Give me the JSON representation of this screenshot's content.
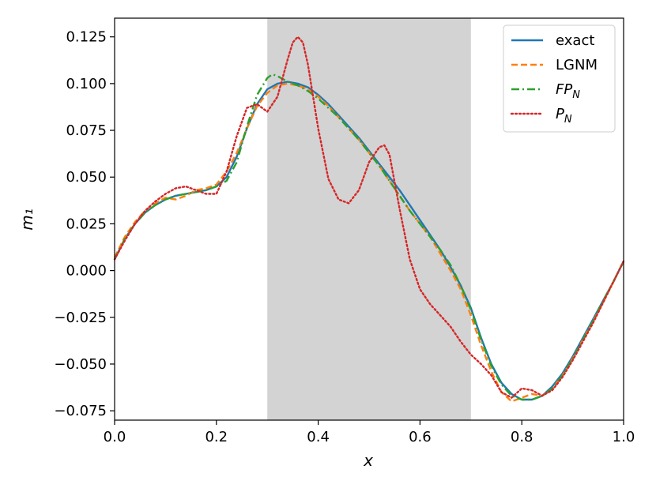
{
  "chart_data": {
    "type": "line",
    "title": "",
    "xlabel": "x",
    "ylabel": "m₁",
    "xlim": [
      0.0,
      1.0
    ],
    "ylim": [
      -0.08,
      0.135
    ],
    "xticks": [
      "0.0",
      "0.2",
      "0.4",
      "0.6",
      "0.8",
      "1.0"
    ],
    "yticks": [
      "−0.075",
      "−0.050",
      "−0.025",
      "0.000",
      "0.025",
      "0.050",
      "0.075",
      "0.100",
      "0.125"
    ],
    "shaded_region": {
      "x": [
        0.3,
        0.7
      ],
      "color": "#d3d3d3"
    },
    "grid": false,
    "legend_position": "top-right",
    "series": [
      {
        "name": "exact",
        "style": "solid",
        "color": "#1f77b4",
        "x": [
          0.0,
          0.02,
          0.04,
          0.06,
          0.08,
          0.1,
          0.12,
          0.14,
          0.16,
          0.18,
          0.2,
          0.22,
          0.24,
          0.26,
          0.28,
          0.3,
          0.32,
          0.34,
          0.36,
          0.38,
          0.4,
          0.42,
          0.44,
          0.46,
          0.48,
          0.5,
          0.52,
          0.54,
          0.56,
          0.58,
          0.6,
          0.62,
          0.64,
          0.66,
          0.68,
          0.7,
          0.72,
          0.74,
          0.76,
          0.78,
          0.8,
          0.82,
          0.84,
          0.86,
          0.88,
          0.9,
          0.92,
          0.94,
          0.96,
          0.98,
          1.0
        ],
        "y": [
          0.006,
          0.017,
          0.025,
          0.031,
          0.035,
          0.038,
          0.04,
          0.041,
          0.042,
          0.043,
          0.045,
          0.05,
          0.061,
          0.076,
          0.089,
          0.097,
          0.1,
          0.101,
          0.1,
          0.098,
          0.094,
          0.089,
          0.083,
          0.077,
          0.071,
          0.064,
          0.057,
          0.05,
          0.043,
          0.035,
          0.027,
          0.019,
          0.011,
          0.002,
          -0.008,
          -0.02,
          -0.036,
          -0.05,
          -0.06,
          -0.066,
          -0.069,
          -0.069,
          -0.067,
          -0.062,
          -0.055,
          -0.046,
          -0.036,
          -0.026,
          -0.016,
          -0.006,
          0.005
        ]
      },
      {
        "name": "LGNM",
        "style": "dashed",
        "color": "#ff7f0e",
        "x": [
          0.0,
          0.02,
          0.04,
          0.06,
          0.08,
          0.1,
          0.12,
          0.14,
          0.16,
          0.18,
          0.2,
          0.22,
          0.24,
          0.26,
          0.28,
          0.3,
          0.32,
          0.34,
          0.36,
          0.38,
          0.4,
          0.42,
          0.44,
          0.46,
          0.48,
          0.5,
          0.52,
          0.54,
          0.56,
          0.58,
          0.6,
          0.62,
          0.64,
          0.66,
          0.68,
          0.7,
          0.72,
          0.74,
          0.76,
          0.78,
          0.8,
          0.82,
          0.84,
          0.86,
          0.88,
          0.9,
          0.92,
          0.94,
          0.96,
          0.98,
          1.0
        ],
        "y": [
          0.007,
          0.018,
          0.026,
          0.032,
          0.036,
          0.039,
          0.038,
          0.04,
          0.043,
          0.044,
          0.046,
          0.053,
          0.063,
          0.076,
          0.088,
          0.095,
          0.099,
          0.1,
          0.099,
          0.097,
          0.093,
          0.088,
          0.082,
          0.076,
          0.07,
          0.063,
          0.056,
          0.048,
          0.04,
          0.032,
          0.025,
          0.018,
          0.009,
          0.0,
          -0.01,
          -0.024,
          -0.04,
          -0.054,
          -0.065,
          -0.07,
          -0.068,
          -0.066,
          -0.067,
          -0.063,
          -0.056,
          -0.047,
          -0.037,
          -0.027,
          -0.017,
          -0.006,
          0.005
        ]
      },
      {
        "name": "FP_N",
        "style": "dashdot",
        "color": "#2ca02c",
        "x": [
          0.0,
          0.02,
          0.04,
          0.06,
          0.08,
          0.1,
          0.12,
          0.14,
          0.16,
          0.18,
          0.2,
          0.22,
          0.24,
          0.26,
          0.28,
          0.3,
          0.31,
          0.32,
          0.34,
          0.36,
          0.38,
          0.4,
          0.42,
          0.44,
          0.46,
          0.48,
          0.5,
          0.52,
          0.54,
          0.56,
          0.58,
          0.6,
          0.62,
          0.64,
          0.66,
          0.68,
          0.7,
          0.72,
          0.74,
          0.76,
          0.78,
          0.8,
          0.82,
          0.84,
          0.86,
          0.88,
          0.9,
          0.92,
          0.94,
          0.96,
          0.98,
          1.0
        ],
        "y": [
          0.006,
          0.017,
          0.025,
          0.031,
          0.035,
          0.038,
          0.04,
          0.041,
          0.042,
          0.043,
          0.045,
          0.048,
          0.058,
          0.077,
          0.094,
          0.103,
          0.105,
          0.104,
          0.101,
          0.099,
          0.096,
          0.092,
          0.087,
          0.082,
          0.076,
          0.07,
          0.063,
          0.056,
          0.048,
          0.04,
          0.032,
          0.025,
          0.018,
          0.011,
          0.003,
          -0.008,
          -0.021,
          -0.037,
          -0.051,
          -0.061,
          -0.067,
          -0.069,
          -0.069,
          -0.067,
          -0.063,
          -0.056,
          -0.047,
          -0.037,
          -0.027,
          -0.016,
          -0.006,
          0.005
        ]
      },
      {
        "name": "P_N",
        "style": "dotted",
        "color": "#d62728",
        "x": [
          0.0,
          0.02,
          0.04,
          0.06,
          0.08,
          0.1,
          0.12,
          0.14,
          0.16,
          0.18,
          0.2,
          0.22,
          0.24,
          0.26,
          0.28,
          0.3,
          0.32,
          0.34,
          0.35,
          0.36,
          0.37,
          0.38,
          0.4,
          0.42,
          0.44,
          0.46,
          0.48,
          0.5,
          0.52,
          0.53,
          0.54,
          0.56,
          0.58,
          0.6,
          0.62,
          0.64,
          0.66,
          0.68,
          0.7,
          0.72,
          0.74,
          0.76,
          0.78,
          0.8,
          0.82,
          0.84,
          0.86,
          0.88,
          0.9,
          0.92,
          0.94,
          0.96,
          0.98,
          1.0
        ],
        "y": [
          0.006,
          0.016,
          0.025,
          0.032,
          0.037,
          0.041,
          0.044,
          0.045,
          0.043,
          0.041,
          0.041,
          0.053,
          0.072,
          0.087,
          0.089,
          0.085,
          0.093,
          0.113,
          0.122,
          0.125,
          0.122,
          0.11,
          0.076,
          0.049,
          0.038,
          0.036,
          0.043,
          0.058,
          0.066,
          0.067,
          0.062,
          0.033,
          0.006,
          -0.01,
          -0.018,
          -0.024,
          -0.03,
          -0.038,
          -0.045,
          -0.05,
          -0.056,
          -0.065,
          -0.068,
          -0.063,
          -0.064,
          -0.067,
          -0.064,
          -0.057,
          -0.048,
          -0.038,
          -0.028,
          -0.017,
          -0.006,
          0.005
        ]
      }
    ]
  },
  "legend": {
    "entries": [
      {
        "label": "exact",
        "sub": ""
      },
      {
        "label": "LGNM",
        "sub": ""
      },
      {
        "label": "FP",
        "sub": "N"
      },
      {
        "label": "P",
        "sub": "N"
      }
    ]
  }
}
